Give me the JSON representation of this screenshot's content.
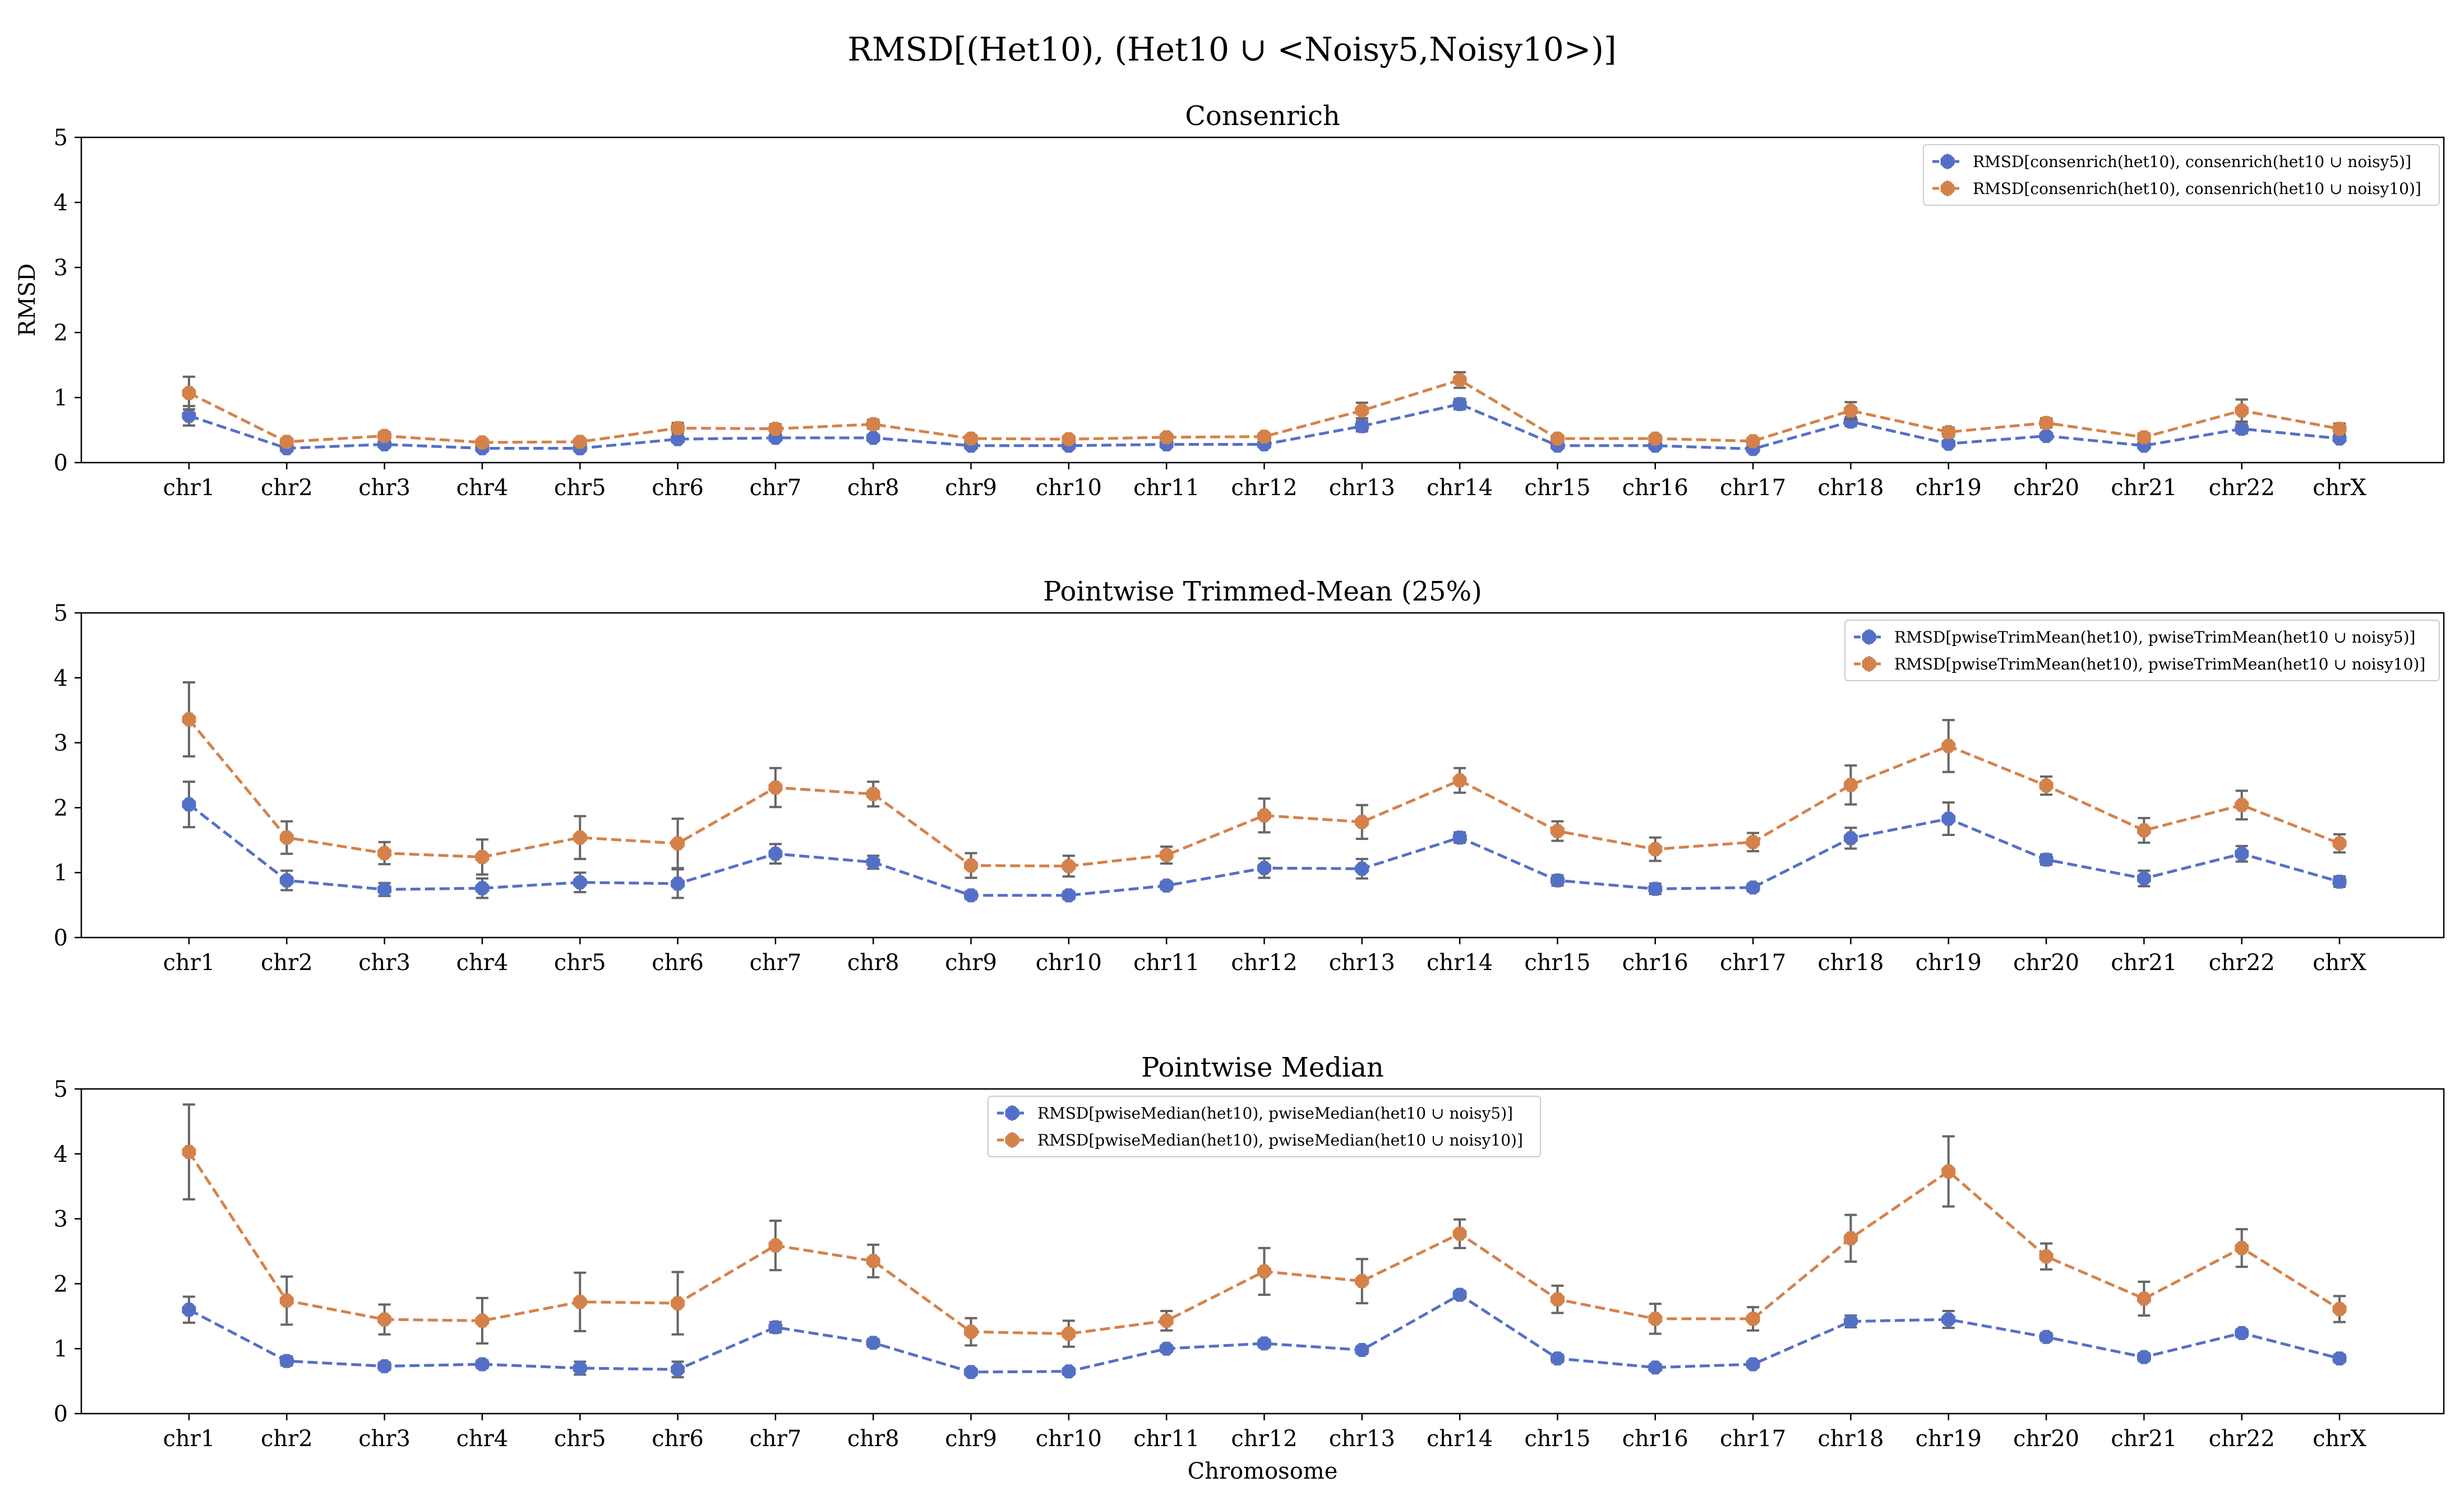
{
  "figure": {
    "suptitle": "RMSD[(Het10), (Het10 ∪ <Noisy5,Noisy10>)]",
    "colors": {
      "series_a": "#5470c6",
      "series_b": "#d4824a",
      "errorbar": "#666666"
    }
  },
  "chart_data": [
    {
      "type": "line",
      "title": "Consenrich",
      "xlabel": "",
      "ylabel": "RMSD",
      "ylim": [
        0,
        5
      ],
      "yticks": [
        0,
        1,
        2,
        3,
        4,
        5
      ],
      "grid": false,
      "legend_position": "top-right",
      "categories": [
        "chr1",
        "chr2",
        "chr3",
        "chr4",
        "chr5",
        "chr6",
        "chr7",
        "chr8",
        "chr9",
        "chr10",
        "chr11",
        "chr12",
        "chr13",
        "chr14",
        "chr15",
        "chr16",
        "chr17",
        "chr18",
        "chr19",
        "chr20",
        "chr21",
        "chr22",
        "chrX"
      ],
      "series": [
        {
          "name": "RMSD[consenrich(het10), consenrich(het10 ∪ noisy5)]",
          "values": [
            0.72,
            0.22,
            0.28,
            0.22,
            0.22,
            0.36,
            0.38,
            0.38,
            0.26,
            0.26,
            0.28,
            0.28,
            0.56,
            0.9,
            0.26,
            0.26,
            0.21,
            0.63,
            0.29,
            0.41,
            0.26,
            0.52,
            0.37
          ],
          "errors": [
            0.15,
            0.03,
            0.04,
            0.03,
            0.03,
            0.05,
            0.04,
            0.05,
            0.03,
            0.03,
            0.03,
            0.03,
            0.08,
            0.08,
            0.03,
            0.03,
            0.03,
            0.07,
            0.04,
            0.05,
            0.03,
            0.07,
            0.04
          ]
        },
        {
          "name": "RMSD[consenrich(het10), consenrich(het10 ∪ noisy10)]",
          "values": [
            1.07,
            0.32,
            0.41,
            0.31,
            0.32,
            0.53,
            0.52,
            0.59,
            0.37,
            0.36,
            0.39,
            0.4,
            0.8,
            1.27,
            0.37,
            0.37,
            0.33,
            0.8,
            0.47,
            0.61,
            0.39,
            0.8,
            0.52
          ],
          "errors": [
            0.25,
            0.05,
            0.06,
            0.04,
            0.04,
            0.08,
            0.07,
            0.07,
            0.05,
            0.05,
            0.05,
            0.05,
            0.12,
            0.12,
            0.05,
            0.05,
            0.05,
            0.13,
            0.07,
            0.07,
            0.06,
            0.17,
            0.08
          ]
        }
      ]
    },
    {
      "type": "line",
      "title": "Pointwise Trimmed-Mean (25%)",
      "xlabel": "",
      "ylabel": "",
      "ylim": [
        0,
        5
      ],
      "yticks": [
        0,
        1,
        2,
        3,
        4,
        5
      ],
      "grid": false,
      "legend_position": "top-right",
      "categories": [
        "chr1",
        "chr2",
        "chr3",
        "chr4",
        "chr5",
        "chr6",
        "chr7",
        "chr8",
        "chr9",
        "chr10",
        "chr11",
        "chr12",
        "chr13",
        "chr14",
        "chr15",
        "chr16",
        "chr17",
        "chr18",
        "chr19",
        "chr20",
        "chr21",
        "chr22",
        "chrX"
      ],
      "series": [
        {
          "name": "RMSD[pwiseTrimMean(het10), pwiseTrimMean(het10 ∪ noisy5)]",
          "values": [
            2.05,
            0.88,
            0.74,
            0.76,
            0.85,
            0.83,
            1.29,
            1.16,
            0.65,
            0.65,
            0.8,
            1.07,
            1.06,
            1.54,
            0.88,
            0.75,
            0.77,
            1.53,
            1.83,
            1.2,
            0.91,
            1.29,
            0.86
          ],
          "errors": [
            0.35,
            0.15,
            0.1,
            0.15,
            0.15,
            0.22,
            0.15,
            0.1,
            0.06,
            0.06,
            0.06,
            0.15,
            0.15,
            0.08,
            0.08,
            0.08,
            0.06,
            0.16,
            0.25,
            0.08,
            0.12,
            0.12,
            0.08
          ]
        },
        {
          "name": "RMSD[pwiseTrimMean(het10), pwiseTrimMean(het10 ∪ noisy10)]",
          "values": [
            3.36,
            1.54,
            1.3,
            1.24,
            1.54,
            1.45,
            2.31,
            2.21,
            1.11,
            1.1,
            1.27,
            1.88,
            1.78,
            2.42,
            1.64,
            1.36,
            1.47,
            2.35,
            2.95,
            2.34,
            1.65,
            2.04,
            1.45
          ],
          "errors": [
            0.57,
            0.25,
            0.17,
            0.27,
            0.33,
            0.38,
            0.3,
            0.19,
            0.19,
            0.16,
            0.13,
            0.26,
            0.26,
            0.19,
            0.15,
            0.18,
            0.14,
            0.3,
            0.4,
            0.14,
            0.19,
            0.22,
            0.14
          ]
        }
      ]
    },
    {
      "type": "line",
      "title": "Pointwise Median",
      "xlabel": "Chromosome",
      "ylabel": "",
      "ylim": [
        0,
        5
      ],
      "yticks": [
        0,
        1,
        2,
        3,
        4,
        5
      ],
      "grid": false,
      "legend_position": "top-center",
      "categories": [
        "chr1",
        "chr2",
        "chr3",
        "chr4",
        "chr5",
        "chr6",
        "chr7",
        "chr8",
        "chr9",
        "chr10",
        "chr11",
        "chr12",
        "chr13",
        "chr14",
        "chr15",
        "chr16",
        "chr17",
        "chr18",
        "chr19",
        "chr20",
        "chr21",
        "chr22",
        "chrX"
      ],
      "series": [
        {
          "name": "RMSD[pwiseMedian(het10), pwiseMedian(het10 ∪ noisy5)]",
          "values": [
            1.6,
            0.81,
            0.73,
            0.76,
            0.7,
            0.68,
            1.33,
            1.09,
            0.64,
            0.65,
            1.0,
            1.08,
            0.98,
            1.83,
            0.85,
            0.71,
            0.76,
            1.42,
            1.45,
            1.18,
            0.87,
            1.24,
            0.85
          ],
          "errors": [
            0.2,
            0.07,
            0.06,
            0.06,
            0.1,
            0.12,
            0.08,
            0.06,
            0.05,
            0.05,
            0.05,
            0.06,
            0.06,
            0.06,
            0.06,
            0.05,
            0.05,
            0.09,
            0.13,
            0.06,
            0.06,
            0.06,
            0.06
          ]
        },
        {
          "name": "RMSD[pwiseMedian(het10), pwiseMedian(het10 ∪ noisy10)]",
          "values": [
            4.03,
            1.74,
            1.45,
            1.43,
            1.72,
            1.7,
            2.59,
            2.35,
            1.26,
            1.23,
            1.43,
            2.19,
            2.04,
            2.77,
            1.76,
            1.46,
            1.46,
            2.7,
            3.73,
            2.42,
            1.77,
            2.55,
            1.61
          ],
          "errors": [
            0.73,
            0.37,
            0.23,
            0.35,
            0.45,
            0.48,
            0.38,
            0.25,
            0.21,
            0.2,
            0.15,
            0.36,
            0.34,
            0.22,
            0.21,
            0.23,
            0.18,
            0.36,
            0.54,
            0.2,
            0.26,
            0.29,
            0.2
          ]
        }
      ]
    }
  ]
}
